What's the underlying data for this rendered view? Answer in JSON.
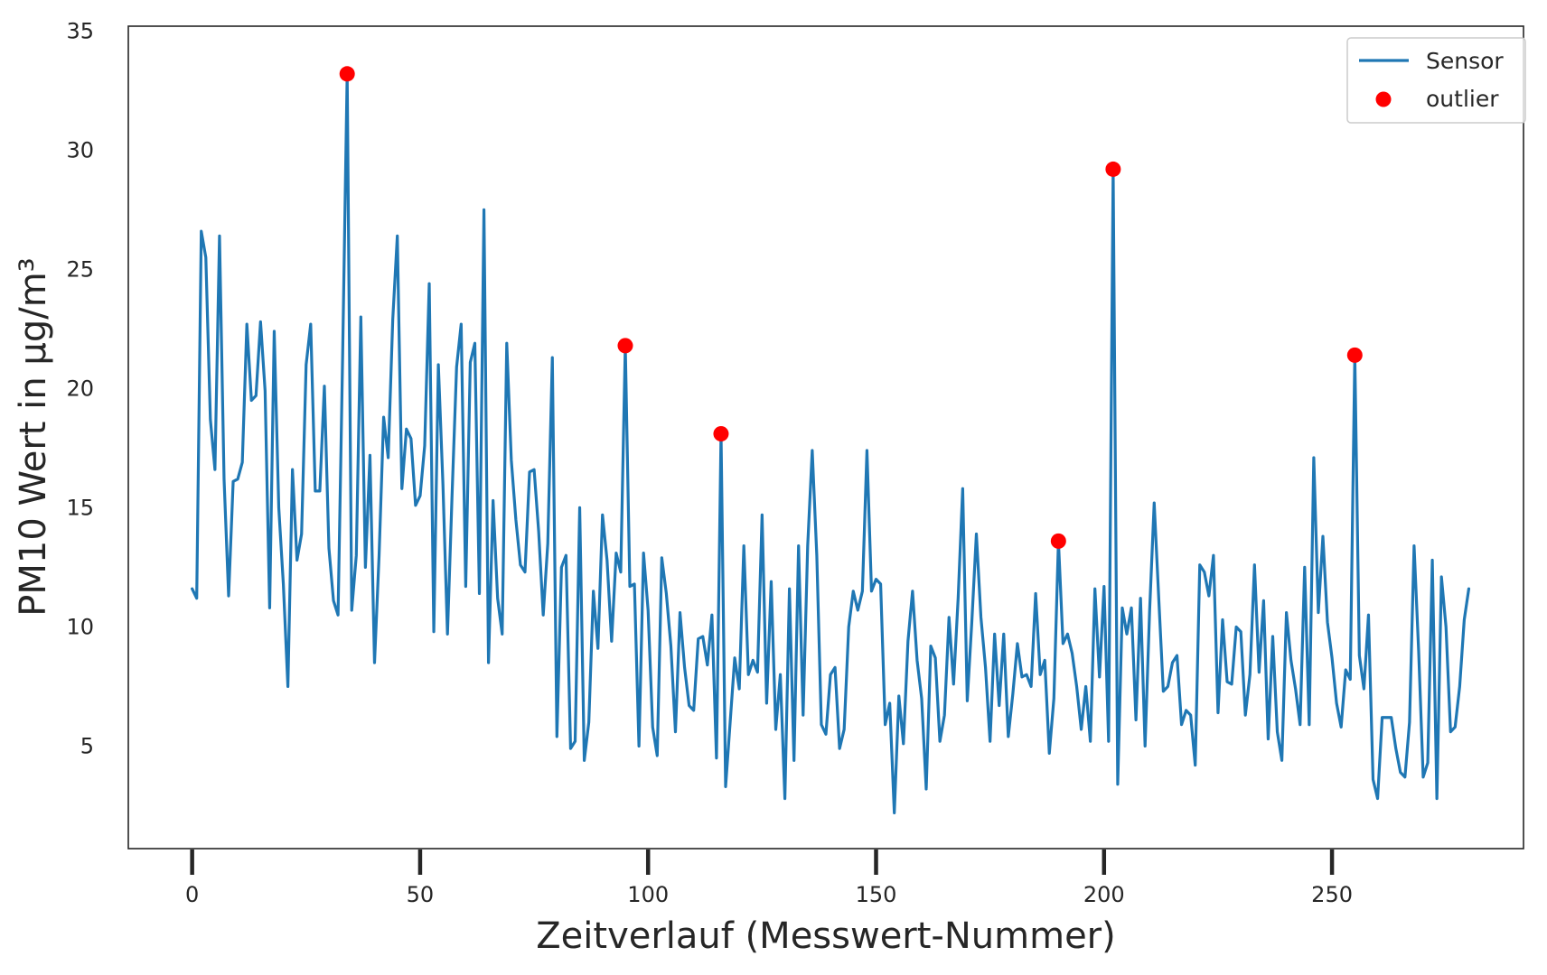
{
  "chart_data": {
    "type": "line",
    "title": "",
    "xlabel": "Zeitverlauf (Messwert-Nummer)",
    "ylabel": "PM10 Wert in µg/m³",
    "xlim": [
      -14,
      292
    ],
    "ylim": [
      0.7,
      35.2
    ],
    "xticks": [
      0,
      50,
      100,
      150,
      200,
      250
    ],
    "yticks": [
      5,
      10,
      15,
      20,
      25,
      30,
      35
    ],
    "grid": false,
    "legend_position": "top-right",
    "series": [
      {
        "name": "Sensor",
        "kind": "line",
        "color": "#1f77b4",
        "x_start": 0,
        "x_step": 1,
        "values": [
          11.6,
          11.2,
          26.6,
          25.5,
          18.7,
          16.6,
          26.4,
          16.2,
          11.3,
          16.1,
          16.2,
          16.9,
          22.7,
          19.5,
          19.7,
          22.8,
          19.9,
          10.8,
          22.4,
          15.0,
          11.8,
          7.5,
          16.6,
          12.8,
          13.9,
          21.0,
          22.7,
          15.7,
          15.7,
          20.1,
          13.3,
          11.1,
          10.5,
          21.3,
          33.2,
          10.7,
          13.0,
          23.0,
          12.5,
          17.2,
          8.5,
          13.0,
          18.8,
          17.1,
          22.9,
          26.4,
          15.8,
          18.3,
          17.9,
          15.1,
          15.5,
          17.6,
          24.4,
          9.8,
          21.0,
          16.0,
          9.7,
          15.5,
          20.9,
          22.7,
          11.7,
          21.1,
          21.9,
          11.4,
          27.5,
          8.5,
          15.3,
          11.2,
          9.7,
          21.9,
          17.0,
          14.5,
          12.6,
          12.3,
          16.5,
          16.6,
          14.0,
          10.5,
          13.5,
          21.3,
          5.4,
          12.5,
          13.0,
          4.9,
          5.2,
          15.0,
          4.4,
          6.0,
          11.5,
          9.1,
          14.7,
          12.8,
          9.4,
          13.1,
          12.3,
          21.8,
          11.7,
          11.8,
          5.0,
          13.1,
          10.7,
          5.8,
          4.6,
          12.9,
          11.4,
          9.2,
          5.6,
          10.6,
          8.3,
          6.7,
          6.5,
          9.5,
          9.6,
          8.4,
          10.5,
          4.5,
          18.1,
          3.3,
          6.0,
          8.7,
          7.4,
          13.4,
          8.0,
          8.6,
          8.1,
          14.7,
          6.8,
          11.9,
          5.7,
          8.0,
          2.8,
          11.6,
          4.4,
          13.4,
          6.3,
          13.4,
          17.4,
          13.0,
          5.9,
          5.5,
          8.0,
          8.3,
          4.9,
          5.7,
          10.0,
          11.5,
          10.7,
          11.5,
          17.4,
          11.5,
          12.0,
          11.8,
          5.9,
          6.8,
          2.2,
          7.1,
          5.1,
          9.4,
          11.5,
          8.6,
          7.0,
          3.2,
          9.2,
          8.7,
          5.2,
          6.3,
          10.4,
          7.6,
          11.2,
          15.8,
          6.9,
          10.2,
          13.9,
          10.4,
          8.3,
          5.2,
          9.7,
          6.7,
          9.7,
          5.4,
          7.2,
          9.3,
          7.9,
          8.0,
          7.5,
          11.4,
          8.0,
          8.6,
          4.7,
          7.0,
          13.6,
          9.3,
          9.7,
          8.9,
          7.5,
          5.7,
          7.5,
          5.2,
          11.6,
          7.9,
          11.7,
          5.2,
          29.2,
          3.4,
          10.8,
          9.7,
          10.8,
          6.1,
          11.2,
          5.0,
          10.7,
          15.2,
          11.2,
          7.3,
          7.5,
          8.5,
          8.8,
          5.9,
          6.5,
          6.3,
          4.2,
          12.6,
          12.3,
          11.3,
          13.0,
          6.4,
          10.3,
          7.7,
          7.6,
          10.0,
          9.8,
          6.3,
          8.0,
          12.6,
          8.1,
          11.1,
          5.3,
          9.6,
          5.6,
          4.4,
          10.6,
          8.6,
          7.4,
          5.9,
          12.5,
          5.9,
          17.1,
          10.6,
          13.8,
          10.2,
          8.7,
          6.8,
          5.8,
          8.2,
          7.8,
          21.4,
          8.8,
          7.4,
          10.5,
          3.6,
          2.8,
          6.2,
          6.2,
          6.2,
          4.9,
          3.9,
          3.7,
          6.0,
          13.4,
          9.0,
          3.7,
          4.3,
          12.8,
          2.8,
          12.1,
          10.0,
          5.6,
          5.8,
          7.5,
          10.3,
          11.6
        ]
      },
      {
        "name": "outlier",
        "kind": "scatter",
        "color": "#ff0000",
        "points": [
          {
            "x": 34,
            "y": 33.2
          },
          {
            "x": 95,
            "y": 21.8
          },
          {
            "x": 116,
            "y": 18.1
          },
          {
            "x": 190,
            "y": 13.6
          },
          {
            "x": 202,
            "y": 29.2
          },
          {
            "x": 255,
            "y": 21.4
          }
        ]
      }
    ],
    "legend": [
      {
        "label": "Sensor",
        "symbol": "line",
        "color": "#1f77b4"
      },
      {
        "label": "outlier",
        "symbol": "dot",
        "color": "#ff0000"
      }
    ]
  }
}
